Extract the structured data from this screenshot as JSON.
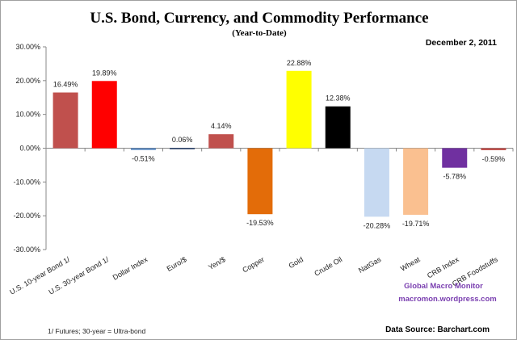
{
  "chart_data": {
    "type": "bar",
    "title": "U.S. Bond, Currency, and Commodity Performance",
    "subtitle": "(Year-to-Date)",
    "date": "December 2, 2011",
    "categories": [
      "U.S. 10-year Bond 1/",
      "U.S. 30-year Bond 1/",
      "Dollar Index",
      "Euro/$",
      "Yen/$",
      "Copper",
      "Gold",
      "Crude Oil",
      "NatGas",
      "Wheat",
      "CRB Index",
      "CRB Foodstuffs"
    ],
    "values": [
      16.49,
      19.89,
      -0.51,
      0.06,
      4.14,
      -19.53,
      22.88,
      12.38,
      -20.28,
      -19.71,
      -5.78,
      -0.59
    ],
    "data_labels": [
      "16.49%",
      "19.89%",
      "-0.51%",
      "0.06%",
      "4.14%",
      "-19.53%",
      "22.88%",
      "12.38%",
      "-20.28%",
      "-19.71%",
      "-5.78%",
      "-0.59%"
    ],
    "colors": [
      "#c0504d",
      "#ff0000",
      "#4f81bd",
      "#1f3864",
      "#c0504d",
      "#e36c09",
      "#ffff00",
      "#000000",
      "#c6d9f1",
      "#fac090",
      "#7030a0",
      "#c0504d"
    ],
    "yticks": [
      "30.00%",
      "20.00%",
      "10.00%",
      "0.00%",
      "-10.00%",
      "-20.00%",
      "-30.00%"
    ],
    "ylim": [
      -30,
      30
    ],
    "xlabel": "",
    "ylabel": "",
    "grid": false,
    "legend": "none"
  },
  "watermark": {
    "line1": "Global Macro Monitor",
    "line2": "macromon.wordpress.com"
  },
  "footnote": "1/  Futures; 30-year = Ultra-bond",
  "source": "Data Source:  Barchart.com"
}
